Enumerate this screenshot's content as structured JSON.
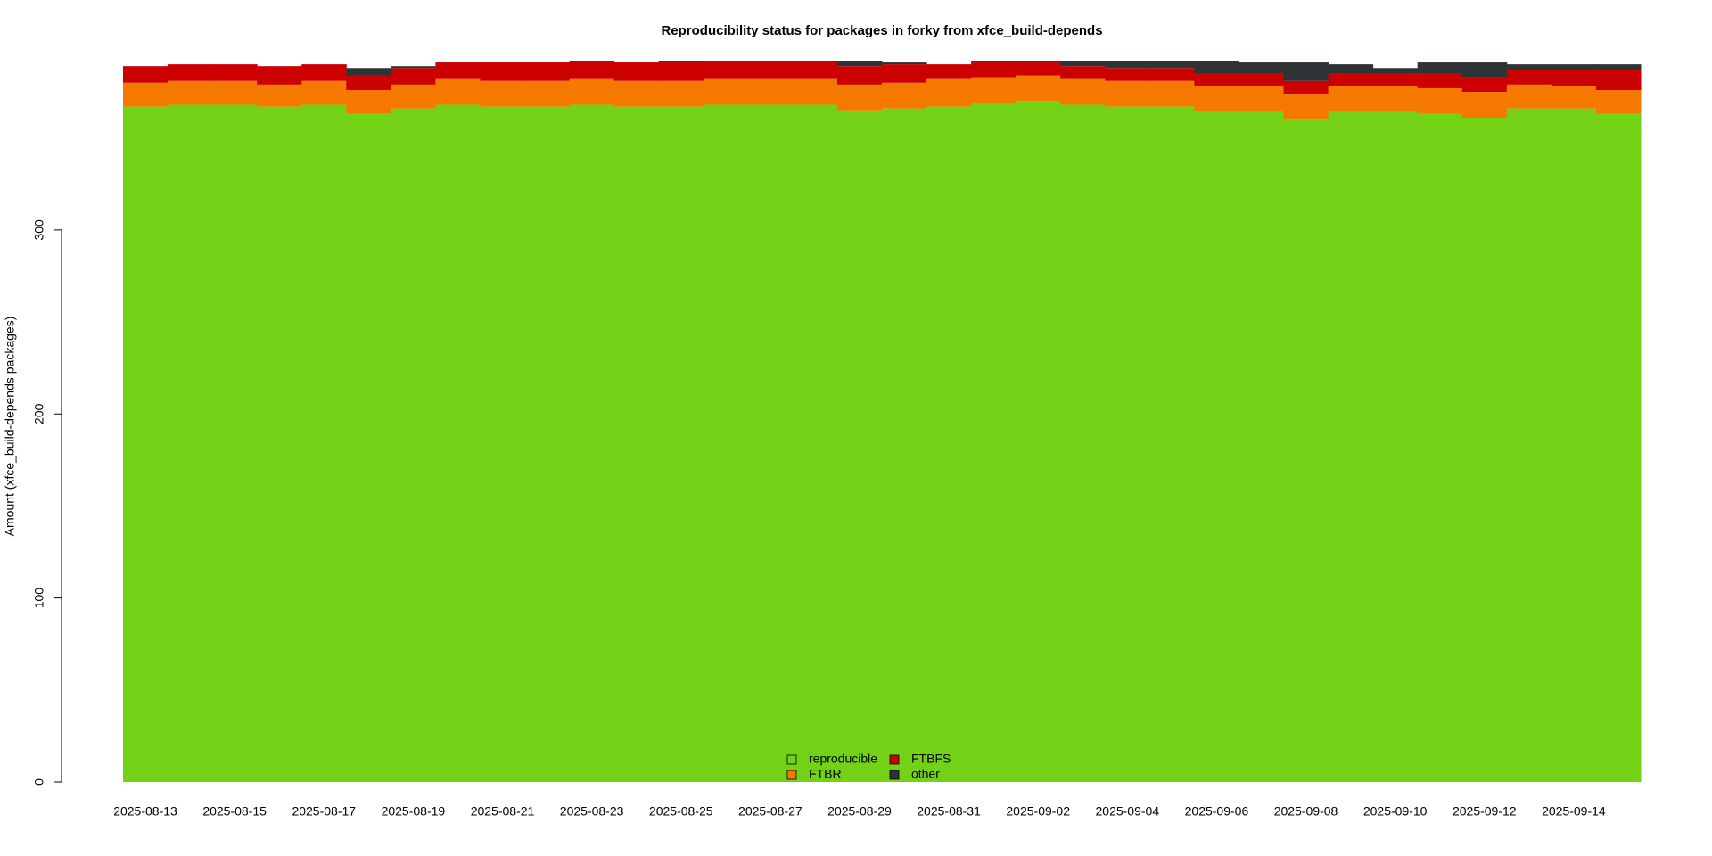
{
  "chart_data": {
    "type": "stacked_step_area",
    "title": "Reproducibility status for packages in forky from xfce_build-depends",
    "y_label": "Amount (xfce_build-depends packages)",
    "categories": [
      "2025-08-13",
      null,
      "2025-08-15",
      null,
      "2025-08-17",
      null,
      "2025-08-19",
      null,
      "2025-08-21",
      null,
      "2025-08-23",
      null,
      "2025-08-25",
      null,
      "2025-08-27",
      null,
      "2025-08-29",
      null,
      "2025-08-31",
      null,
      "2025-09-02",
      null,
      "2025-09-04",
      null,
      "2025-09-06",
      null,
      "2025-09-08",
      null,
      "2025-09-10",
      null,
      "2025-09-12",
      null,
      "2025-09-14",
      null
    ],
    "series": [
      {
        "name": "reproducible",
        "color": "#73d216",
        "values": [
          367,
          368,
          368,
          367,
          368,
          363,
          366,
          368,
          367,
          367,
          368,
          367,
          367,
          368,
          368,
          368,
          365,
          366,
          367,
          369,
          370,
          368,
          367,
          367,
          364,
          364,
          360,
          364,
          364,
          363,
          361,
          366,
          366,
          363
        ]
      },
      {
        "name": "FTBR",
        "color": "#f57900",
        "values": [
          13,
          13,
          13,
          12,
          13,
          13,
          13,
          14,
          14,
          14,
          14,
          14,
          14,
          14,
          14,
          14,
          14,
          14,
          15,
          14,
          14,
          14,
          14,
          14,
          14,
          14,
          14,
          14,
          14,
          14,
          14,
          13,
          12,
          13
        ]
      },
      {
        "name": "FTBFS",
        "color": "#cc0000",
        "values": [
          9,
          9,
          9,
          10,
          9,
          8,
          9,
          9,
          10,
          10,
          10,
          10,
          10,
          10,
          10,
          10,
          10,
          10,
          8,
          8,
          7,
          7,
          7,
          7,
          7,
          7,
          7,
          7,
          7,
          8,
          8,
          8,
          9,
          11
        ]
      },
      {
        "name": "other",
        "color": "#2e3436",
        "values": [
          0,
          0,
          0,
          0,
          0,
          4,
          1,
          0,
          0,
          0,
          0,
          0,
          1,
          0,
          0,
          0,
          3,
          1,
          0,
          1,
          1,
          3,
          4,
          4,
          7,
          6,
          10,
          5,
          3,
          6,
          8,
          3,
          3,
          3
        ]
      }
    ],
    "ylim": [
      0,
      392
    ],
    "yticks": [
      0,
      100,
      200,
      300
    ],
    "legend": "bottom"
  }
}
